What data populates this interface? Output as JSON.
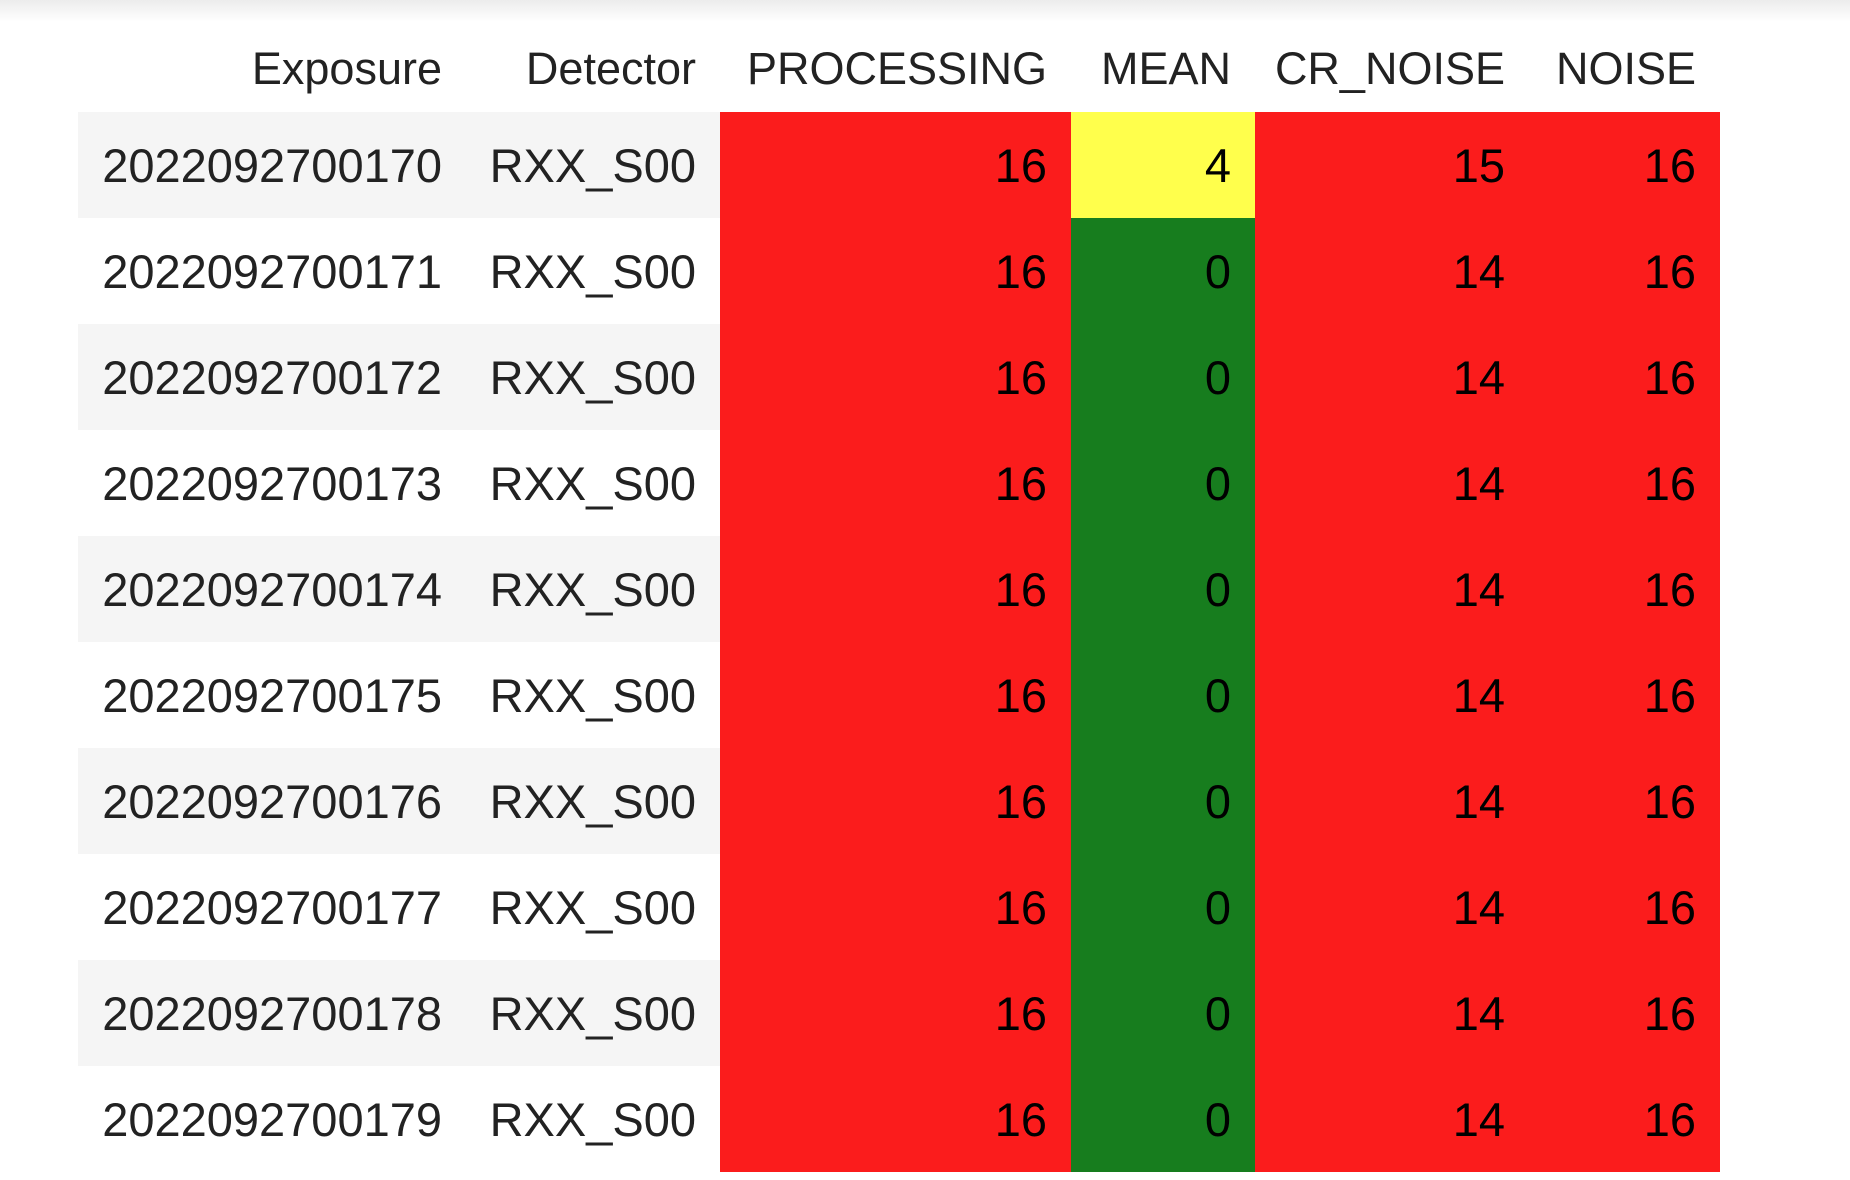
{
  "colors": {
    "fail": "#fb1c1c",
    "warn": "#ffff4c",
    "pass": "#177d1e"
  },
  "columns": [
    "Exposure",
    "Detector",
    "PROCESSING",
    "MEAN",
    "CR_NOISE",
    "NOISE"
  ],
  "rows": [
    {
      "exposure": "2022092700170",
      "detector": "RXX_S00",
      "values": [
        16,
        4,
        15,
        16
      ],
      "status": [
        "fail",
        "warn",
        "fail",
        "fail"
      ]
    },
    {
      "exposure": "2022092700171",
      "detector": "RXX_S00",
      "values": [
        16,
        0,
        14,
        16
      ],
      "status": [
        "fail",
        "pass",
        "fail",
        "fail"
      ]
    },
    {
      "exposure": "2022092700172",
      "detector": "RXX_S00",
      "values": [
        16,
        0,
        14,
        16
      ],
      "status": [
        "fail",
        "pass",
        "fail",
        "fail"
      ]
    },
    {
      "exposure": "2022092700173",
      "detector": "RXX_S00",
      "values": [
        16,
        0,
        14,
        16
      ],
      "status": [
        "fail",
        "pass",
        "fail",
        "fail"
      ]
    },
    {
      "exposure": "2022092700174",
      "detector": "RXX_S00",
      "values": [
        16,
        0,
        14,
        16
      ],
      "status": [
        "fail",
        "pass",
        "fail",
        "fail"
      ]
    },
    {
      "exposure": "2022092700175",
      "detector": "RXX_S00",
      "values": [
        16,
        0,
        14,
        16
      ],
      "status": [
        "fail",
        "pass",
        "fail",
        "fail"
      ]
    },
    {
      "exposure": "2022092700176",
      "detector": "RXX_S00",
      "values": [
        16,
        0,
        14,
        16
      ],
      "status": [
        "fail",
        "pass",
        "fail",
        "fail"
      ]
    },
    {
      "exposure": "2022092700177",
      "detector": "RXX_S00",
      "values": [
        16,
        0,
        14,
        16
      ],
      "status": [
        "fail",
        "pass",
        "fail",
        "fail"
      ]
    },
    {
      "exposure": "2022092700178",
      "detector": "RXX_S00",
      "values": [
        16,
        0,
        14,
        16
      ],
      "status": [
        "fail",
        "pass",
        "fail",
        "fail"
      ]
    },
    {
      "exposure": "2022092700179",
      "detector": "RXX_S00",
      "values": [
        16,
        0,
        14,
        16
      ],
      "status": [
        "fail",
        "pass",
        "fail",
        "fail"
      ]
    }
  ]
}
